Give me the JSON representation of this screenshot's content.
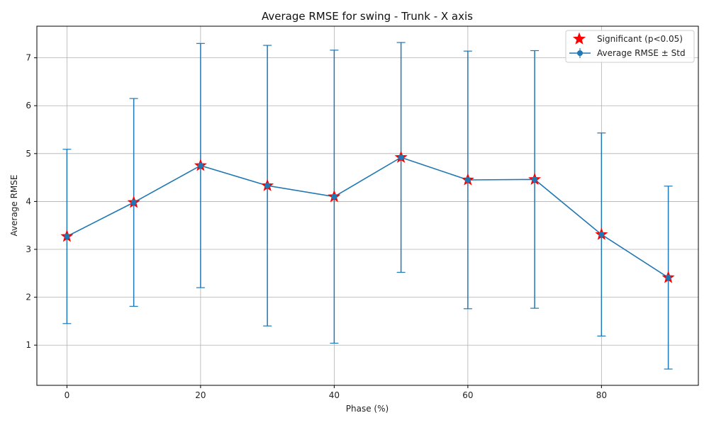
{
  "chart_data": {
    "type": "line",
    "title": "Average RMSE for swing - Trunk - X axis",
    "xlabel": "Phase (%)",
    "ylabel": "Average RMSE",
    "x": [
      0,
      10,
      20,
      30,
      40,
      50,
      60,
      70,
      80,
      90
    ],
    "xlim": [
      -4.5,
      94.5
    ],
    "ylim": [
      0.16,
      7.66
    ],
    "xticks": [
      0,
      20,
      40,
      60,
      80
    ],
    "yticks": [
      1,
      2,
      3,
      4,
      5,
      6,
      7
    ],
    "grid": true,
    "legend_position": "top-right",
    "series": [
      {
        "name": "Average RMSE ± Std",
        "values": [
          3.27,
          3.98,
          4.75,
          4.33,
          4.1,
          4.92,
          4.45,
          4.46,
          3.31,
          2.41
        ],
        "std": [
          1.82,
          2.17,
          2.55,
          2.93,
          3.06,
          2.4,
          2.69,
          2.69,
          2.12,
          1.91
        ],
        "color": "#1f77b4",
        "marker": "circle"
      },
      {
        "name": "Significant (p<0.05)",
        "x": [
          0,
          10,
          20,
          30,
          40,
          50,
          60,
          70,
          80,
          90
        ],
        "values": [
          3.27,
          3.98,
          4.75,
          4.33,
          4.1,
          4.92,
          4.45,
          4.46,
          3.31,
          2.41
        ],
        "color": "#ff0000",
        "marker": "star"
      }
    ],
    "colors": {
      "line": "#1f77b4",
      "significant": "#ff0000",
      "grid": "#b0b0b0"
    }
  }
}
